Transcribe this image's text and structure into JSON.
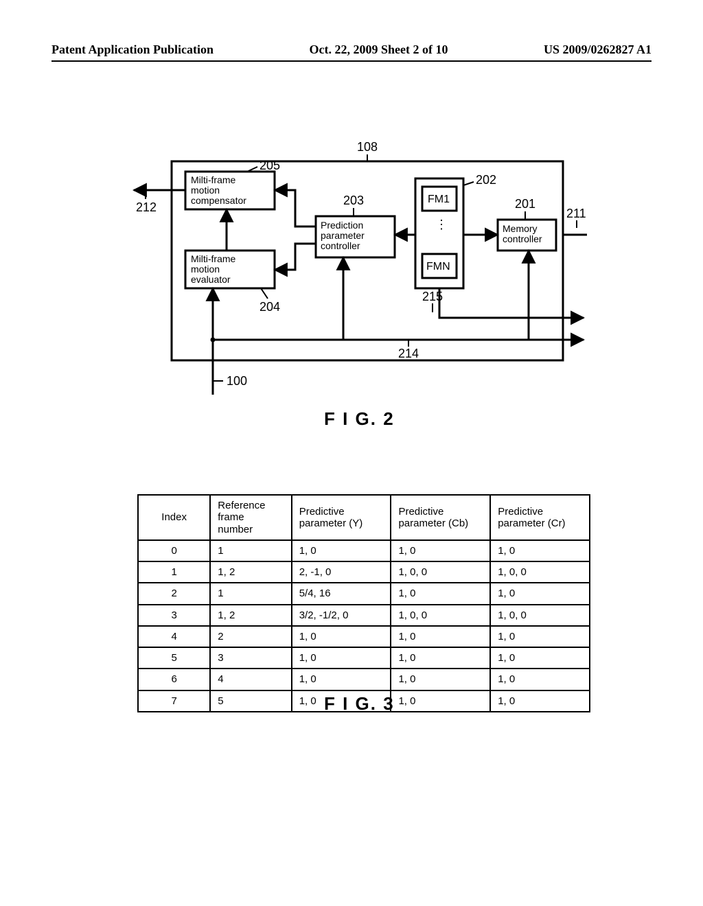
{
  "header": {
    "left": "Patent Application Publication",
    "center": "Oct. 22, 2009  Sheet 2 of 10",
    "right": "US 2009/0262827 A1"
  },
  "fig2": {
    "caption": "F I G. 2",
    "outer_label": "108",
    "labels": {
      "left_out_arrow": "212",
      "right_in_arrow": "211",
      "right_out_mid": "215",
      "right_out_low": "214",
      "bottom_in": "100"
    },
    "blocks": {
      "compensator": {
        "label": "205",
        "text1": "Milti-frame",
        "text2": "motion",
        "text3": "compensator"
      },
      "evaluator": {
        "label": "204",
        "text1": "Milti-frame",
        "text2": "motion",
        "text3": "evaluator"
      },
      "predctrl": {
        "label": "203",
        "text1": "Prediction",
        "text2": "parameter",
        "text3": "controller"
      },
      "memctrl": {
        "label": "201",
        "text1": "Memory",
        "text2": "controller"
      },
      "frames": {
        "label": "202",
        "fm1": "FM1",
        "fmn": "FMN"
      }
    },
    "style": {
      "stroke": "#000000",
      "stroke_width": 3,
      "thin_stroke_width": 2,
      "font": "Arial, Helvetica, sans-serif",
      "label_fontsize": 18,
      "block_fontsize": 14
    }
  },
  "fig3": {
    "caption": "F I G. 3",
    "columns": [
      "Index",
      "Reference frame\nnumber",
      "Predictive\nparameter (Y)",
      "Predictive\nparameter (Cb)",
      "Predictive\nparameter (Cr)"
    ],
    "col_widths_pct": [
      16,
      18,
      22,
      22,
      22
    ],
    "header_align": [
      "center",
      "left",
      "left",
      "left",
      "left"
    ],
    "rows_align": "center-first",
    "rows": [
      [
        "0",
        "1",
        "1, 0",
        "1, 0",
        "1, 0"
      ],
      [
        "1",
        "1, 2",
        "2, -1, 0",
        "1, 0, 0",
        "1, 0, 0"
      ],
      [
        "2",
        "1",
        "5/4, 16",
        "1, 0",
        "1, 0"
      ],
      [
        "3",
        "1, 2",
        "3/2, -1/2, 0",
        "1, 0, 0",
        "1, 0, 0"
      ],
      [
        "4",
        "2",
        "1, 0",
        "1, 0",
        "1, 0"
      ],
      [
        "5",
        "3",
        "1, 0",
        "1, 0",
        "1, 0"
      ],
      [
        "6",
        "4",
        "1, 0",
        "1, 0",
        "1, 0"
      ],
      [
        "7",
        "5",
        "1, 0",
        "1, 0",
        "1, 0"
      ]
    ]
  }
}
